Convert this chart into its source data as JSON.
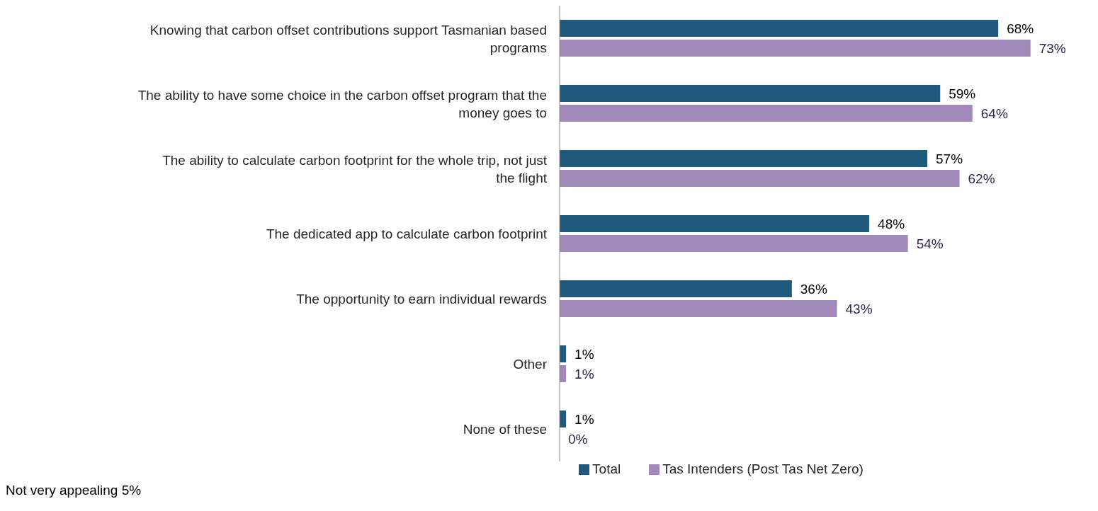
{
  "chart_data": {
    "type": "bar",
    "orientation": "horizontal",
    "data_labels": true,
    "legend": "bottom",
    "categories": [
      "Knowing that carbon offset contributions support Tasmanian based programs",
      "The ability to have some choice in the carbon offset program that the money goes to",
      "The ability to calculate carbon footprint for the whole trip, not just the flight",
      "The dedicated app to calculate carbon footprint",
      "The opportunity to earn individual rewards",
      "Other",
      "None of these"
    ],
    "series": [
      {
        "name": "Total",
        "color": "#1f5a7c",
        "values": [
          68,
          59,
          57,
          48,
          36,
          1,
          1
        ],
        "value_labels": [
          "68%",
          "59%",
          "57%",
          "48%",
          "36%",
          "1%",
          "1%"
        ]
      },
      {
        "name": "Tas Intenders (Post Tas Net Zero)",
        "color": "#a18ab9",
        "values": [
          73,
          64,
          62,
          54,
          43,
          1,
          0
        ],
        "value_labels": [
          "73%",
          "64%",
          "62%",
          "54%",
          "43%",
          "1%",
          "0%"
        ]
      }
    ],
    "annotations": [
      "Not very appealing 5%"
    ]
  }
}
